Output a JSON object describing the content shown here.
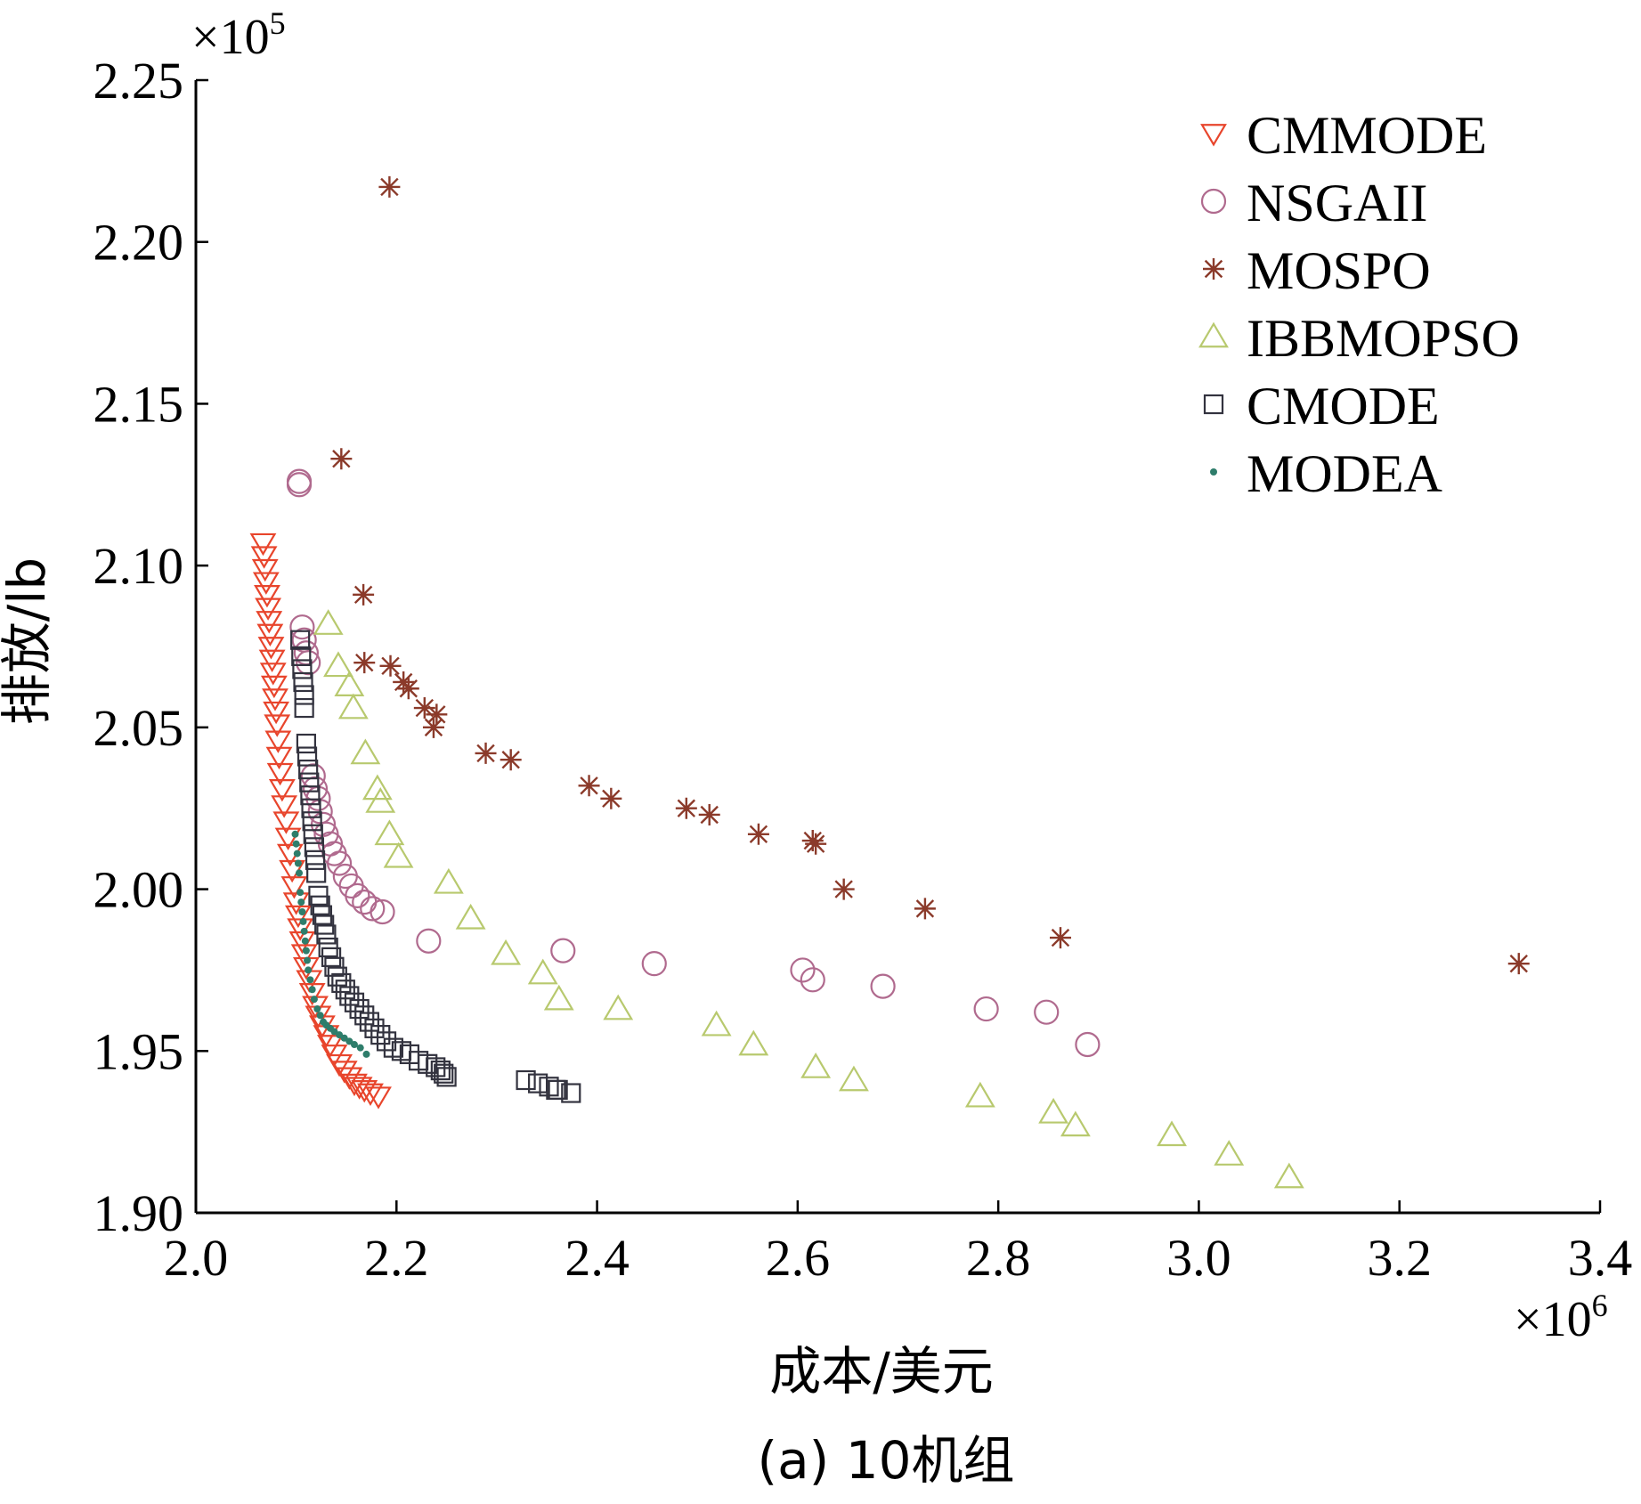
{
  "caption": "(a) 10机组",
  "chart_data": {
    "type": "scatter",
    "xlabel": "成本/美元",
    "ylabel": "排放/lb",
    "x_multiplier": "×10",
    "x_multiplier_exp": "6",
    "y_multiplier": "×10",
    "y_multiplier_exp": "5",
    "xlim": [
      2.0,
      3.4
    ],
    "ylim": [
      1.9,
      2.25
    ],
    "x_ticks": [
      "2.0",
      "2.2",
      "2.4",
      "2.6",
      "2.8",
      "3.0",
      "3.2",
      "3.4"
    ],
    "y_ticks": [
      "1.90",
      "1.95",
      "2.00",
      "2.05",
      "2.10",
      "2.15",
      "2.20",
      "2.25"
    ],
    "legend_position": "top-right",
    "grid": false,
    "series": [
      {
        "name": "CMMODE",
        "marker": "triangle-down",
        "color": "#e8452c",
        "points": [
          [
            2.067,
            2.107
          ],
          [
            2.068,
            2.103
          ],
          [
            2.069,
            2.099
          ],
          [
            2.07,
            2.095
          ],
          [
            2.071,
            2.091
          ],
          [
            2.072,
            2.087
          ],
          [
            2.073,
            2.083
          ],
          [
            2.074,
            2.079
          ],
          [
            2.075,
            2.075
          ],
          [
            2.076,
            2.071
          ],
          [
            2.077,
            2.067
          ],
          [
            2.078,
            2.063
          ],
          [
            2.079,
            2.059
          ],
          [
            2.08,
            2.055
          ],
          [
            2.081,
            2.051
          ],
          [
            2.082,
            2.046
          ],
          [
            2.083,
            2.041
          ],
          [
            2.084,
            2.036
          ],
          [
            2.086,
            2.031
          ],
          [
            2.088,
            2.026
          ],
          [
            2.09,
            2.021
          ],
          [
            2.092,
            2.016
          ],
          [
            2.094,
            2.011
          ],
          [
            2.096,
            2.006
          ],
          [
            2.098,
            2.001
          ],
          [
            2.1,
            1.996
          ],
          [
            2.102,
            1.992
          ],
          [
            2.104,
            1.988
          ],
          [
            2.106,
            1.984
          ],
          [
            2.108,
            1.98
          ],
          [
            2.11,
            1.976
          ],
          [
            2.113,
            1.972
          ],
          [
            2.116,
            1.968
          ],
          [
            2.119,
            1.964
          ],
          [
            2.122,
            1.961
          ],
          [
            2.126,
            1.958
          ],
          [
            2.13,
            1.955
          ],
          [
            2.134,
            1.952
          ],
          [
            2.138,
            1.949
          ],
          [
            2.143,
            1.946
          ],
          [
            2.148,
            1.944
          ],
          [
            2.153,
            1.942
          ],
          [
            2.158,
            1.94
          ],
          [
            2.163,
            1.939
          ],
          [
            2.168,
            1.938
          ],
          [
            2.174,
            1.937
          ],
          [
            2.182,
            1.936
          ]
        ]
      },
      {
        "name": "NSGAII",
        "marker": "circle",
        "color": "#b06a8e",
        "points": [
          [
            2.103,
            2.126
          ],
          [
            2.103,
            2.125
          ],
          [
            2.106,
            2.081
          ],
          [
            2.108,
            2.077
          ],
          [
            2.11,
            2.073
          ],
          [
            2.112,
            2.07
          ],
          [
            2.117,
            2.035
          ],
          [
            2.119,
            2.031
          ],
          [
            2.122,
            2.028
          ],
          [
            2.124,
            2.024
          ],
          [
            2.127,
            2.02
          ],
          [
            2.13,
            2.017
          ],
          [
            2.134,
            2.014
          ],
          [
            2.138,
            2.011
          ],
          [
            2.143,
            2.008
          ],
          [
            2.149,
            2.004
          ],
          [
            2.155,
            2.001
          ],
          [
            2.161,
            1.998
          ],
          [
            2.168,
            1.996
          ],
          [
            2.176,
            1.994
          ],
          [
            2.186,
            1.993
          ],
          [
            2.232,
            1.984
          ],
          [
            2.366,
            1.981
          ],
          [
            2.457,
            1.977
          ],
          [
            2.605,
            1.975
          ],
          [
            2.615,
            1.972
          ],
          [
            2.685,
            1.97
          ],
          [
            2.788,
            1.963
          ],
          [
            2.848,
            1.962
          ],
          [
            2.889,
            1.952
          ]
        ]
      },
      {
        "name": "MOSPO",
        "marker": "asterisk",
        "color": "#8b3a2a",
        "points": [
          [
            2.193,
            2.217
          ],
          [
            2.145,
            2.133
          ],
          [
            2.167,
            2.091
          ],
          [
            2.168,
            2.07
          ],
          [
            2.194,
            2.069
          ],
          [
            2.207,
            2.064
          ],
          [
            2.212,
            2.062
          ],
          [
            2.228,
            2.056
          ],
          [
            2.24,
            2.054
          ],
          [
            2.237,
            2.05
          ],
          [
            2.289,
            2.042
          ],
          [
            2.314,
            2.04
          ],
          [
            2.392,
            2.032
          ],
          [
            2.414,
            2.028
          ],
          [
            2.489,
            2.025
          ],
          [
            2.512,
            2.023
          ],
          [
            2.561,
            2.017
          ],
          [
            2.615,
            2.015
          ],
          [
            2.618,
            2.014
          ],
          [
            2.646,
            2.0
          ],
          [
            2.727,
            1.994
          ],
          [
            2.862,
            1.985
          ],
          [
            3.319,
            1.977
          ]
        ]
      },
      {
        "name": "IBBMOPSO",
        "marker": "triangle-up",
        "color": "#b8c96e",
        "points": [
          [
            2.132,
            2.082
          ],
          [
            2.142,
            2.069
          ],
          [
            2.153,
            2.063
          ],
          [
            2.157,
            2.056
          ],
          [
            2.169,
            2.042
          ],
          [
            2.181,
            2.031
          ],
          [
            2.184,
            2.027
          ],
          [
            2.193,
            2.017
          ],
          [
            2.202,
            2.01
          ],
          [
            2.252,
            2.002
          ],
          [
            2.274,
            1.991
          ],
          [
            2.309,
            1.98
          ],
          [
            2.346,
            1.974
          ],
          [
            2.362,
            1.966
          ],
          [
            2.421,
            1.963
          ],
          [
            2.519,
            1.958
          ],
          [
            2.556,
            1.952
          ],
          [
            2.618,
            1.945
          ],
          [
            2.656,
            1.941
          ],
          [
            2.782,
            1.936
          ],
          [
            2.855,
            1.931
          ],
          [
            2.877,
            1.927
          ],
          [
            2.973,
            1.924
          ],
          [
            3.03,
            1.918
          ],
          [
            3.09,
            1.911
          ]
        ]
      },
      {
        "name": "CMODE",
        "marker": "square",
        "color": "#33333f",
        "points": [
          [
            2.104,
            2.077
          ],
          [
            2.105,
            2.072
          ],
          [
            2.106,
            2.068
          ],
          [
            2.107,
            2.064
          ],
          [
            2.108,
            2.06
          ],
          [
            2.108,
            2.056
          ],
          [
            2.11,
            2.045
          ],
          [
            2.111,
            2.041
          ],
          [
            2.112,
            2.037
          ],
          [
            2.113,
            2.033
          ],
          [
            2.114,
            2.029
          ],
          [
            2.115,
            2.025
          ],
          [
            2.116,
            2.021
          ],
          [
            2.117,
            2.017
          ],
          [
            2.118,
            2.013
          ],
          [
            2.119,
            2.009
          ],
          [
            2.12,
            2.005
          ],
          [
            2.122,
            1.998
          ],
          [
            2.124,
            1.995
          ],
          [
            2.126,
            1.992
          ],
          [
            2.128,
            1.989
          ],
          [
            2.13,
            1.986
          ],
          [
            2.132,
            1.982
          ],
          [
            2.135,
            1.979
          ],
          [
            2.138,
            1.976
          ],
          [
            2.141,
            1.973
          ],
          [
            2.145,
            1.971
          ],
          [
            2.149,
            1.969
          ],
          [
            2.153,
            1.967
          ],
          [
            2.158,
            1.965
          ],
          [
            2.163,
            1.963
          ],
          [
            2.168,
            1.961
          ],
          [
            2.173,
            1.959
          ],
          [
            2.178,
            1.957
          ],
          [
            2.184,
            1.955
          ],
          [
            2.19,
            1.953
          ],
          [
            2.197,
            1.951
          ],
          [
            2.205,
            1.95
          ],
          [
            2.213,
            1.949
          ],
          [
            2.222,
            1.947
          ],
          [
            2.231,
            1.946
          ],
          [
            2.239,
            1.945
          ],
          [
            2.244,
            1.944
          ],
          [
            2.247,
            1.943
          ],
          [
            2.25,
            1.942
          ],
          [
            2.329,
            1.941
          ],
          [
            2.341,
            1.94
          ],
          [
            2.352,
            1.939
          ],
          [
            2.359,
            1.938
          ],
          [
            2.361,
            1.938
          ],
          [
            2.374,
            1.937
          ]
        ]
      },
      {
        "name": "MODEA",
        "marker": "dot",
        "color": "#2e7d6b",
        "points": [
          [
            2.099,
            2.017
          ],
          [
            2.1,
            2.014
          ],
          [
            2.101,
            2.011
          ],
          [
            2.102,
            2.008
          ],
          [
            2.103,
            2.005
          ],
          [
            2.104,
            1.999
          ],
          [
            2.105,
            1.996
          ],
          [
            2.106,
            1.993
          ],
          [
            2.107,
            1.99
          ],
          [
            2.108,
            1.987
          ],
          [
            2.109,
            1.984
          ],
          [
            2.11,
            1.981
          ],
          [
            2.111,
            1.978
          ],
          [
            2.112,
            1.975
          ],
          [
            2.114,
            1.972
          ],
          [
            2.116,
            1.969
          ],
          [
            2.118,
            1.966
          ],
          [
            2.121,
            1.963
          ],
          [
            2.124,
            1.961
          ],
          [
            2.127,
            1.959
          ],
          [
            2.13,
            1.958
          ],
          [
            2.134,
            1.957
          ],
          [
            2.138,
            1.956
          ],
          [
            2.143,
            1.955
          ],
          [
            2.148,
            1.954
          ],
          [
            2.153,
            1.953
          ],
          [
            2.158,
            1.952
          ],
          [
            2.164,
            1.951
          ],
          [
            2.17,
            1.949
          ]
        ]
      }
    ]
  }
}
